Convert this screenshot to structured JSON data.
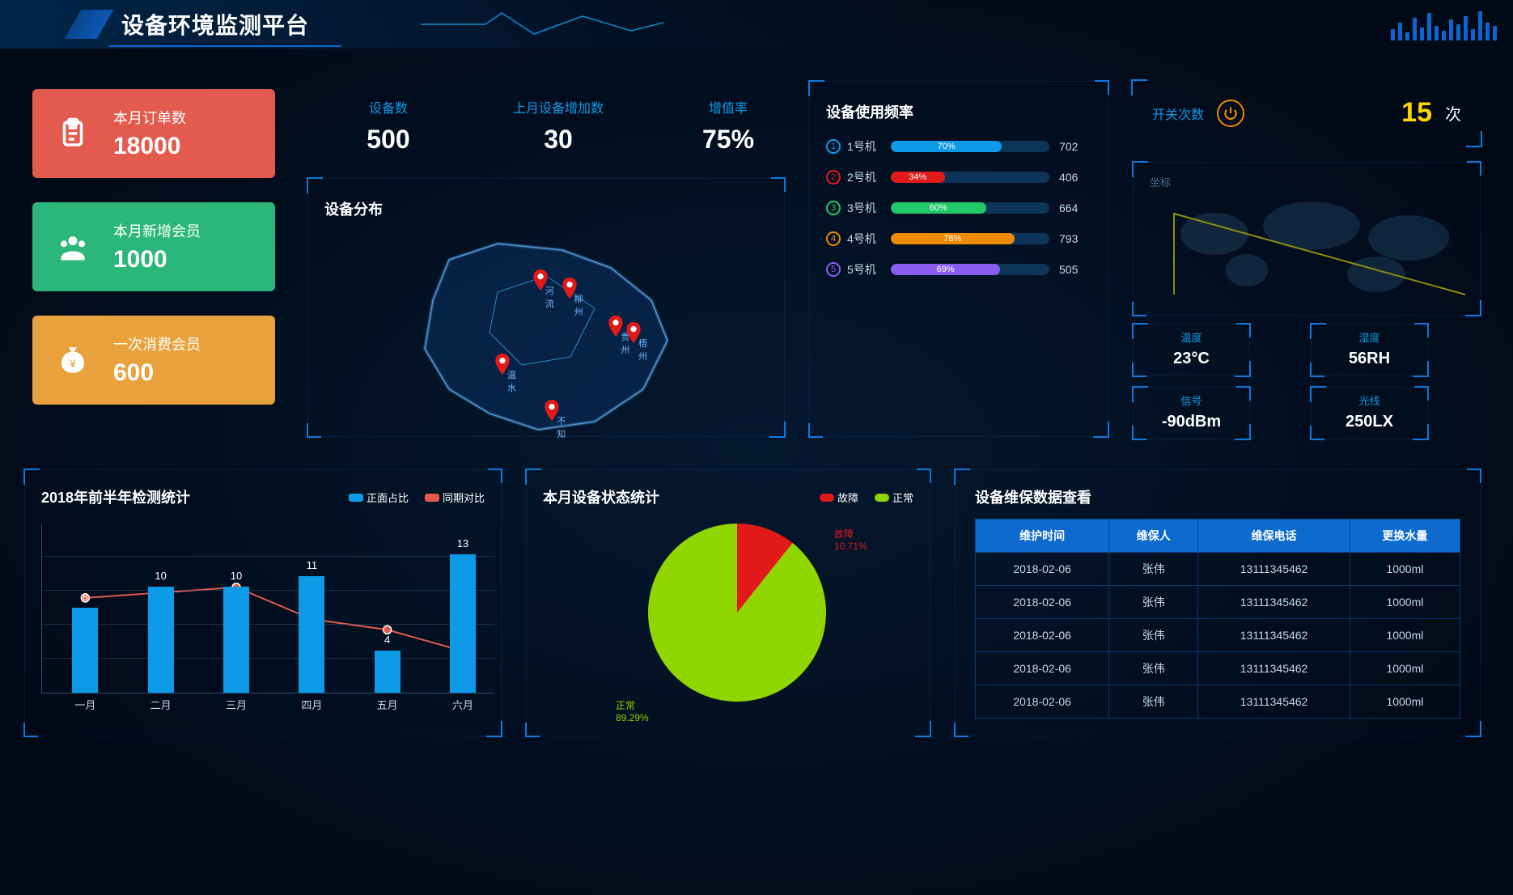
{
  "title": "设备环境监测平台",
  "colors": {
    "primary": "#0d9be8",
    "bg": "#02122a",
    "accent": "#ffd400"
  },
  "header_bars": [
    14,
    22,
    10,
    28,
    16,
    34,
    18,
    12,
    26,
    20,
    30,
    14,
    36,
    22,
    18
  ],
  "cards": [
    {
      "label": "本月订单数",
      "value": "18000",
      "color": "#e35b4f",
      "icon": "clipboard"
    },
    {
      "label": "本月新增会员",
      "value": "1000",
      "color": "#2bb77b",
      "icon": "group"
    },
    {
      "label": "一次消费会员",
      "value": "600",
      "color": "#e9a13b",
      "icon": "moneybag"
    }
  ],
  "stats": [
    {
      "label": "设备数",
      "value": "500"
    },
    {
      "label": "上月设备增加数",
      "value": "30"
    },
    {
      "label": "增值率",
      "value": "75%"
    }
  ],
  "distribution": {
    "title": "设备分布",
    "markers": [
      {
        "x": 48,
        "y": 30,
        "label": "河流",
        "color": "#e21a1a"
      },
      {
        "x": 58,
        "y": 34,
        "label": "柳州",
        "color": "#e21a1a"
      },
      {
        "x": 74,
        "y": 52,
        "label": "贵州",
        "color": "#e21a1a"
      },
      {
        "x": 80,
        "y": 55,
        "label": "梧州",
        "color": "#e21a1a"
      },
      {
        "x": 35,
        "y": 70,
        "label": "温水",
        "color": "#e21a1a"
      },
      {
        "x": 52,
        "y": 92,
        "label": "不知",
        "color": "#e21a1a"
      }
    ]
  },
  "usage": {
    "title": "设备使用频率",
    "rows": [
      {
        "name": "1号机",
        "pct": 70,
        "trail": 702,
        "color": "#0d9be8"
      },
      {
        "name": "2号机",
        "pct": 34,
        "trail": 406,
        "color": "#e21a1a"
      },
      {
        "name": "3号机",
        "pct": 60,
        "trail": 664,
        "color": "#22c96b"
      },
      {
        "name": "4号机",
        "pct": 78,
        "trail": 793,
        "color": "#f08a00"
      },
      {
        "name": "5号机",
        "pct": 69,
        "trail": 505,
        "color": "#8a5cf0"
      }
    ]
  },
  "switch": {
    "label": "开关次数",
    "value": "15",
    "unit": "次"
  },
  "coords_label": "坐标",
  "mini": [
    {
      "label": "温度",
      "value": "23°C"
    },
    {
      "label": "湿度",
      "value": "56RH"
    },
    {
      "label": "信号",
      "value": "-90dBm"
    },
    {
      "label": "光线",
      "value": "250LX"
    }
  ],
  "barline": {
    "title": "2018年前半年检测统计",
    "legend": [
      {
        "name": "正面占比",
        "color": "#0d9be8"
      },
      {
        "name": "同期对比",
        "color": "#e35b4f"
      }
    ],
    "categories": [
      "一月",
      "二月",
      "三月",
      "四月",
      "五月",
      "六月"
    ],
    "bars": [
      8,
      10,
      10,
      11,
      4,
      13
    ],
    "line": [
      9,
      9.5,
      10,
      7,
      6,
      4
    ],
    "ymax": 16,
    "bar_color": "#0d9be8",
    "line_color": "#e35b4f"
  },
  "pie": {
    "title": "本月设备状态统计",
    "legend": [
      {
        "name": "故障",
        "color": "#e21a1a"
      },
      {
        "name": "正常",
        "color": "#8fd600"
      }
    ],
    "slices": [
      {
        "name": "正常",
        "pct": 89.29,
        "color": "#8fd600"
      },
      {
        "name": "故障",
        "pct": 10.71,
        "color": "#e21a1a"
      }
    ]
  },
  "maint": {
    "title": "设备维保数据查看",
    "columns": [
      "维护时间",
      "维保人",
      "维保电话",
      "更换水量"
    ],
    "rows": [
      [
        "2018-02-06",
        "张伟",
        "13111345462",
        "1000ml"
      ],
      [
        "2018-02-06",
        "张伟",
        "13111345462",
        "1000ml"
      ],
      [
        "2018-02-06",
        "张伟",
        "13111345462",
        "1000ml"
      ],
      [
        "2018-02-06",
        "张伟",
        "13111345462",
        "1000ml"
      ],
      [
        "2018-02-06",
        "张伟",
        "13111345462",
        "1000ml"
      ]
    ]
  }
}
